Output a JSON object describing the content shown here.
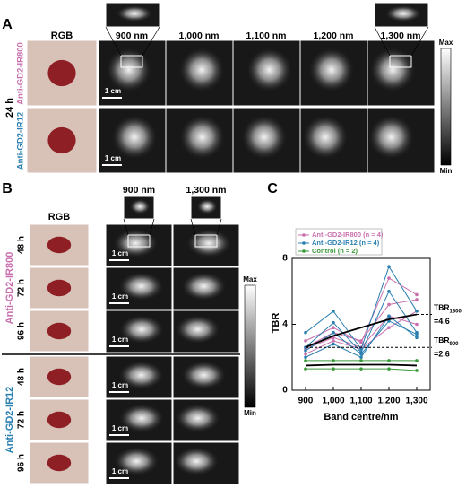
{
  "panel_a": {
    "label": "A",
    "rgb": "RGB",
    "wavelengths": [
      "900 nm",
      "1,000 nm",
      "1,100 nm",
      "1,200 nm",
      "1,300 nm"
    ],
    "time": "24 h",
    "groups": [
      "Anti-GD2-IR800",
      "Anti-GD2-IR12"
    ],
    "scale_bar": "1 cm",
    "colorbar": {
      "max": "Max",
      "min": "Min"
    }
  },
  "panel_b": {
    "label": "B",
    "rgb": "RGB",
    "wavelengths": [
      "900 nm",
      "1,300 nm"
    ],
    "groups": [
      {
        "name": "Anti-GD2-IR800",
        "times": [
          "48 h",
          "72 h",
          "96 h"
        ]
      },
      {
        "name": "Anti-GD2-IR12",
        "times": [
          "48 h",
          "72 h",
          "96 h"
        ]
      }
    ],
    "scale_bar": "1 cm",
    "colorbar": {
      "max": "Max",
      "min": "Min"
    }
  },
  "chart_data": {
    "type": "line",
    "panel_label": "C",
    "x_label": "Band centre/nm",
    "y_label": "TBR",
    "categories": [
      "900",
      "1,000",
      "1,100",
      "1,200",
      "1,300"
    ],
    "ylim": [
      0,
      8
    ],
    "yticks": [
      0,
      4,
      8
    ],
    "series": [
      {
        "name": "Anti-GD2-IR800 (n = 4)",
        "color": "#c96fae",
        "lines": [
          [
            3.0,
            3.8,
            2.9,
            6.8,
            5.8
          ],
          [
            2.6,
            3.5,
            3.0,
            5.2,
            5.5
          ],
          [
            2.5,
            3.2,
            2.6,
            4.5,
            4.0
          ],
          [
            2.2,
            3.0,
            2.5,
            3.8,
            4.8
          ]
        ]
      },
      {
        "name": "Anti-GD2-IR12 (n = 4)",
        "color": "#2a7fb0",
        "lines": [
          [
            3.5,
            4.8,
            2.5,
            7.5,
            4.8
          ],
          [
            2.6,
            4.1,
            2.3,
            6.0,
            3.5
          ],
          [
            2.4,
            3.5,
            2.2,
            4.2,
            3.4
          ],
          [
            2.0,
            2.8,
            2.0,
            4.5,
            3.2
          ]
        ]
      },
      {
        "name": "Control (n = 2)",
        "color": "#3a9a3a",
        "lines": [
          [
            1.8,
            1.8,
            1.8,
            1.8,
            1.8
          ],
          [
            1.3,
            1.3,
            1.3,
            1.3,
            1.2
          ]
        ]
      }
    ],
    "fits": [
      {
        "color": "#000000",
        "values": [
          2.6,
          3.3,
          3.8,
          4.3,
          4.6
        ]
      },
      {
        "color": "#000000",
        "values": [
          1.5,
          1.55,
          1.55,
          1.55,
          1.5
        ]
      }
    ],
    "annotations": [
      {
        "label": "TBR",
        "sub": "1300",
        "value": 4.6,
        "value_label": "=4.6"
      },
      {
        "label": "TBR",
        "sub": "900",
        "value": 2.6,
        "value_label": "=2.6"
      }
    ]
  }
}
